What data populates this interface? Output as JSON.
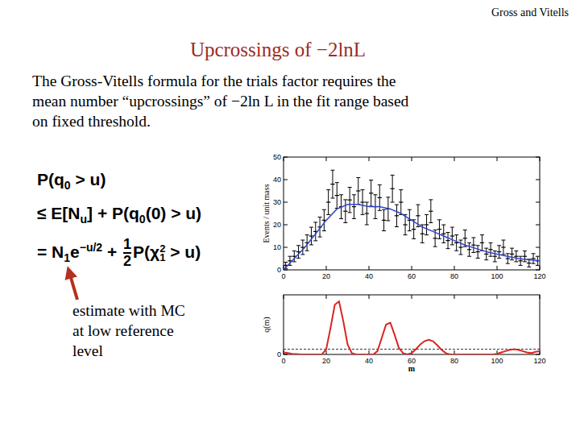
{
  "header": {
    "text": "Gross and Vitells"
  },
  "title": {
    "text": "Upcrossings of −2lnL"
  },
  "body": {
    "lines": [
      "The Gross-Vitells formula for the trials factor requires the",
      "mean number “upcrossings” of −2ln L in the fit range based",
      "on fixed threshold."
    ]
  },
  "formula": {
    "lines": [
      [
        {
          "t": "P(q"
        },
        {
          "sub": "0"
        },
        {
          "t": " > u)"
        }
      ],
      [
        {
          "t": "≤ E[N"
        },
        {
          "sub": "u"
        },
        {
          "t": "] + P(q"
        },
        {
          "sub": "0"
        },
        {
          "t": "(0) > u)"
        }
      ],
      [
        {
          "t": "= N"
        },
        {
          "sub": "1"
        },
        {
          "t": "e"
        },
        {
          "sup": "−u/2"
        },
        {
          "t": " + "
        },
        {
          "num": "1",
          "den": "2"
        },
        {
          "t": "P(χ"
        },
        {
          "sup": "2",
          "sub": "1"
        },
        {
          "t": " > u)"
        }
      ]
    ]
  },
  "annotation": {
    "lines": [
      "estimate with MC",
      "at low reference",
      "level"
    ]
  },
  "chart_data": [
    {
      "type": "scatter",
      "ylabel": "Events / unit mass",
      "xlim": [
        0,
        120
      ],
      "ylim": [
        0,
        50
      ],
      "xticks": [
        0,
        20,
        40,
        60,
        80,
        100,
        120
      ],
      "yticks": [
        0,
        10,
        20,
        30,
        40,
        50
      ],
      "series": [
        {
          "type": "scatter",
          "marker": "errorbar",
          "color": "#000000",
          "x": [
            1,
            3,
            5,
            7,
            9,
            11,
            13,
            15,
            17,
            19,
            21,
            23,
            25,
            27,
            29,
            31,
            33,
            35,
            37,
            39,
            41,
            43,
            45,
            47,
            49,
            51,
            53,
            55,
            57,
            59,
            61,
            63,
            65,
            67,
            69,
            71,
            73,
            75,
            77,
            79,
            81,
            83,
            85,
            87,
            89,
            91,
            93,
            95,
            97,
            99,
            101,
            103,
            105,
            107,
            109,
            111,
            113,
            115,
            117,
            119
          ],
          "values": [
            2,
            4,
            6,
            8,
            10,
            12,
            15,
            17,
            19,
            22,
            30,
            38,
            33,
            28,
            26,
            31,
            28,
            35,
            30,
            25,
            34,
            28,
            32,
            22,
            27,
            36,
            24,
            30,
            20,
            22,
            18,
            24,
            16,
            20,
            26,
            14,
            18,
            16,
            13,
            15,
            12,
            10,
            14,
            9,
            11,
            8,
            12,
            7,
            9,
            6,
            8,
            10,
            5,
            7,
            6,
            4,
            6,
            3,
            5,
            4
          ],
          "errors": [
            1.4,
            2,
            2.4,
            2.8,
            3.2,
            3.5,
            3.9,
            4.1,
            4.4,
            4.7,
            5.5,
            6.2,
            5.7,
            5.3,
            5.1,
            5.6,
            5.3,
            5.9,
            5.5,
            5,
            5.8,
            5.3,
            5.7,
            4.7,
            5.2,
            6,
            4.9,
            5.5,
            4.5,
            4.7,
            4.2,
            4.9,
            4,
            4.5,
            5.1,
            3.7,
            4.2,
            4,
            3.6,
            3.9,
            3.5,
            3.2,
            3.7,
            3,
            3.3,
            2.8,
            3.5,
            2.6,
            3,
            2.4,
            2.8,
            3.2,
            2.2,
            2.6,
            2.4,
            2,
            2.4,
            1.7,
            2.2,
            2
          ]
        },
        {
          "type": "line",
          "color": "#3344cc",
          "x": [
            0,
            5,
            10,
            15,
            20,
            25,
            30,
            35,
            40,
            45,
            50,
            55,
            60,
            65,
            70,
            75,
            80,
            85,
            90,
            95,
            100,
            105,
            110,
            115,
            120
          ],
          "values": [
            0,
            5,
            10,
            16,
            22,
            27,
            29,
            29,
            28,
            28,
            27,
            25,
            22,
            19,
            17,
            15,
            13,
            11,
            9.5,
            8,
            7,
            6,
            5,
            4.5,
            4
          ]
        }
      ]
    },
    {
      "type": "line",
      "xlabel": "m",
      "ylabel": "q(m)",
      "xlim": [
        0,
        120
      ],
      "ylim": [
        0,
        9
      ],
      "xticks": [
        0,
        20,
        40,
        60,
        80,
        100,
        120
      ],
      "yticks": [
        0
      ],
      "reference_level": 0.8,
      "series": [
        {
          "type": "line",
          "color": "#dd2222",
          "line_style": "solid",
          "x": [
            0,
            2,
            4,
            6,
            8,
            10,
            12,
            14,
            16,
            18,
            20,
            22,
            24,
            26,
            28,
            30,
            32,
            34,
            36,
            38,
            40,
            42,
            44,
            46,
            48,
            50,
            52,
            54,
            56,
            58,
            60,
            62,
            64,
            66,
            68,
            70,
            72,
            74,
            76,
            78,
            80,
            82,
            84,
            86,
            88,
            90,
            92,
            94,
            96,
            98,
            100,
            102,
            104,
            106,
            108,
            110,
            112,
            114,
            116,
            118,
            120
          ],
          "values": [
            0.3,
            0.2,
            0.1,
            0.05,
            0,
            0,
            0,
            0,
            0,
            0,
            0.8,
            4,
            7.5,
            8,
            5,
            1.5,
            0.2,
            0,
            0,
            0,
            0,
            0,
            0.5,
            2.5,
            4.5,
            4.8,
            3,
            1,
            0.2,
            0,
            0.2,
            0.8,
            1.5,
            2,
            2.2,
            2,
            1.4,
            0.7,
            0.2,
            0,
            0,
            0,
            0,
            0,
            0,
            0,
            0,
            0,
            0,
            0,
            0.1,
            0.3,
            0.5,
            0.7,
            0.8,
            0.7,
            0.5,
            0.3,
            0.2,
            0.4,
            0.5
          ]
        }
      ]
    }
  ]
}
